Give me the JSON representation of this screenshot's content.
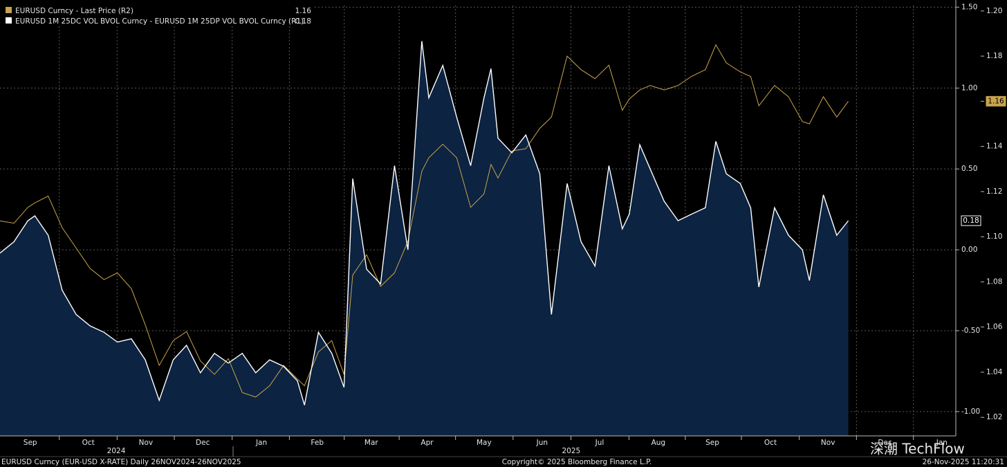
{
  "chart_data": {
    "type": "line",
    "x": [
      0,
      0.24,
      0.48,
      0.6,
      0.83,
      1.07,
      1.31,
      1.55,
      1.79,
      2.02,
      2.26,
      2.5,
      2.74,
      2.98,
      3.21,
      3.45,
      3.69,
      3.93,
      4.17,
      4.4,
      4.64,
      4.88,
      5.12,
      5.24,
      5.48,
      5.71,
      5.92,
      6.07,
      6.31,
      6.55,
      6.79,
      7.02,
      7.26,
      7.38,
      7.62,
      7.86,
      8.1,
      8.33,
      8.45,
      8.57,
      8.81,
      9.05,
      9.29,
      9.49,
      9.76,
      10,
      10.24,
      10.48,
      10.71,
      10.83,
      11.01,
      11.19,
      11.43,
      11.67,
      11.9,
      12.14,
      12.32,
      12.5,
      12.74,
      12.92,
      13.06,
      13.33,
      13.57,
      13.81,
      13.93,
      14.17,
      14.4,
      14.6
    ],
    "series": [
      {
        "name": "EURUSD Curncy - Last Price (R2)",
        "color": "#c9a44c",
        "axis": "y2",
        "values": [
          1.107,
          1.106,
          1.113,
          1.115,
          1.118,
          1.104,
          1.095,
          1.086,
          1.081,
          1.084,
          1.077,
          1.061,
          1.043,
          1.054,
          1.058,
          1.045,
          1.039,
          1.046,
          1.031,
          1.029,
          1.034,
          1.043,
          1.037,
          1.034,
          1.049,
          1.054,
          1.039,
          1.083,
          1.092,
          1.078,
          1.084,
          1.098,
          1.129,
          1.135,
          1.141,
          1.135,
          1.113,
          1.119,
          1.132,
          1.126,
          1.138,
          1.139,
          1.148,
          1.153,
          1.18,
          1.174,
          1.17,
          1.176,
          1.156,
          1.161,
          1.165,
          1.167,
          1.165,
          1.167,
          1.171,
          1.174,
          1.185,
          1.177,
          1.173,
          1.171,
          1.158,
          1.167,
          1.162,
          1.151,
          1.15,
          1.162,
          1.153,
          1.16
        ]
      },
      {
        "name": "EURUSD 1M 25DC VOL BVOL Curncy - EURUSD 1M 25DP VOL BVOL Curncy (R1)",
        "color": "#ffffff",
        "fill": "#0c2342",
        "axis": "y",
        "values": [
          -0.02,
          0.05,
          0.18,
          0.21,
          0.09,
          -0.25,
          -0.4,
          -0.47,
          -0.51,
          -0.57,
          -0.55,
          -0.68,
          -0.93,
          -0.68,
          -0.59,
          -0.76,
          -0.64,
          -0.7,
          -0.64,
          -0.76,
          -0.68,
          -0.72,
          -0.81,
          -0.96,
          -0.51,
          -0.64,
          -0.85,
          0.44,
          -0.12,
          -0.21,
          0.52,
          0,
          1.29,
          0.94,
          1.14,
          0.82,
          0.52,
          0.94,
          1.12,
          0.69,
          0.6,
          0.71,
          0.47,
          -0.4,
          0.41,
          0.05,
          -0.1,
          0.52,
          0.13,
          0.22,
          0.65,
          0.5,
          0.3,
          0.18,
          0.22,
          0.26,
          0.67,
          0.47,
          0.41,
          0.26,
          -0.23,
          0.26,
          0.09,
          0,
          -0.19,
          0.34,
          0.09,
          0.18
        ]
      }
    ],
    "xlim": [
      0,
      16.45
    ],
    "xticks": [
      {
        "value": 0.52,
        "label": "Sep"
      },
      {
        "value": 1.52,
        "label": "Oct"
      },
      {
        "value": 2.51,
        "label": "Nov"
      },
      {
        "value": 3.49,
        "label": "Dec"
      },
      {
        "value": 4.5,
        "label": "Jan"
      },
      {
        "value": 5.46,
        "label": "Feb"
      },
      {
        "value": 6.39,
        "label": "Mar"
      },
      {
        "value": 7.35,
        "label": "Apr"
      },
      {
        "value": 8.33,
        "label": "May"
      },
      {
        "value": 9.33,
        "label": "Jun"
      },
      {
        "value": 10.32,
        "label": "Jul"
      },
      {
        "value": 11.33,
        "label": "Aug"
      },
      {
        "value": 12.26,
        "label": "Sep"
      },
      {
        "value": 13.26,
        "label": "Oct"
      },
      {
        "value": 14.25,
        "label": "Nov"
      },
      {
        "value": 15.23,
        "label": "Dec"
      },
      {
        "value": 16.21,
        "label": "Jan"
      }
    ],
    "years": [
      {
        "value": 2.0,
        "label": "2024"
      },
      {
        "value": 9.83,
        "label": "2025"
      }
    ],
    "ylim": [
      -1.15,
      1.51
    ],
    "yticks": [
      {
        "value": -1,
        "label": "-1.00"
      },
      {
        "value": -0.5,
        "label": "-0.50"
      },
      {
        "value": 0,
        "label": "0.00"
      },
      {
        "value": 0.5,
        "label": "0.50"
      },
      {
        "value": 1,
        "label": "1.00"
      },
      {
        "value": 1.5,
        "label": "1.50"
      }
    ],
    "y2lim": [
      1.0118,
      1.2024
    ],
    "y2ticks": [
      {
        "value": 1.02,
        "label": "1.02"
      },
      {
        "value": 1.04,
        "label": "1.04"
      },
      {
        "value": 1.06,
        "label": "1.06"
      },
      {
        "value": 1.08,
        "label": "1.08"
      },
      {
        "value": 1.1,
        "label": "1.10"
      },
      {
        "value": 1.12,
        "label": "1.12"
      },
      {
        "value": 1.14,
        "label": "1.14"
      },
      {
        "value": 1.16,
        "label": "1.16"
      },
      {
        "value": 1.18,
        "label": "1.18"
      },
      {
        "value": 1.2,
        "label": "1.20"
      }
    ],
    "grid": true,
    "footer_left": "EURUSD Curncy (EUR-USD X-RATE) Daily 26NOV2024-26NOV2025",
    "footer_center": "Copyright© 2025 Bloomberg Finance L.P.",
    "footer_right": "26-Nov-2025 11:20:31",
    "watermark": "深潮 TechFlow"
  }
}
